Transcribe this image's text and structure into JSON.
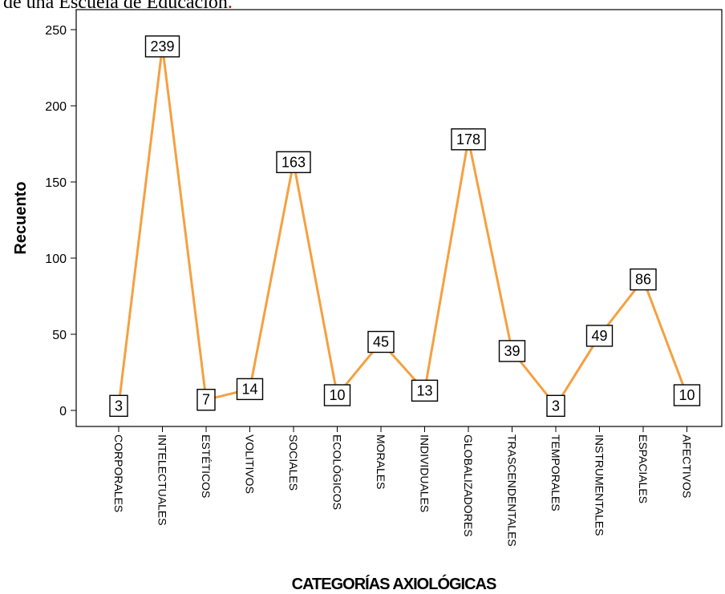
{
  "caption": {
    "text": "de una Escuela de Educación",
    "mark": "."
  },
  "chart_data": {
    "type": "line",
    "categories": [
      "CORPORALES",
      "INTELECTUALES",
      "ESTÉTICOS",
      "VOLITIVOS",
      "SOCIALES",
      "ECOLÓGICOS",
      "MORALES",
      "INDIVIDUALES",
      "GLOBALIZADORES",
      "TRASCENDENTALES",
      "TEMPORALES",
      "INSTRUMENTALES",
      "ESPACIALES",
      "AFECTIVOS"
    ],
    "values": [
      3,
      239,
      7,
      14,
      163,
      10,
      45,
      13,
      178,
      39,
      3,
      49,
      86,
      10
    ],
    "xlabel": "CATEGORÍAS AXIOLÓGICAS",
    "ylabel": "Recuento",
    "ylim": [
      0,
      250
    ],
    "yticks": [
      0,
      50,
      100,
      150,
      200,
      250
    ],
    "line_color": "#f5a040",
    "grid": false,
    "data_labels": true
  }
}
